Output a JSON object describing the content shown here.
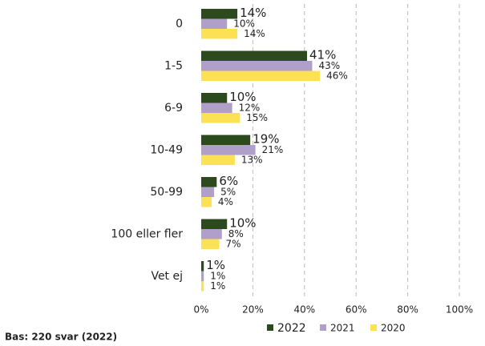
{
  "chart_data": {
    "type": "hbar",
    "categories": [
      "0",
      "1-5",
      "6-9",
      "10-49",
      "50-99",
      "100 eller fler",
      "Vet ej"
    ],
    "series": [
      {
        "name": "2022",
        "color": "#2d4a1e",
        "values": [
          14,
          41,
          10,
          19,
          6,
          10,
          1
        ],
        "value_labels": [
          "14%",
          "41%",
          "10%",
          "19%",
          "6%",
          "10%",
          "1%"
        ]
      },
      {
        "name": "2021",
        "color": "#b09fc9",
        "values": [
          10,
          43,
          12,
          21,
          5,
          8,
          1
        ],
        "value_labels": [
          "10%",
          "43%",
          "12%",
          "21%",
          "5%",
          "8%",
          "1%"
        ]
      },
      {
        "name": "2020",
        "color": "#fce154",
        "values": [
          14,
          46,
          15,
          13,
          4,
          7,
          1
        ],
        "value_labels": [
          "14%",
          "46%",
          "15%",
          "13%",
          "4%",
          "7%",
          "1%"
        ]
      }
    ],
    "xlim": [
      0,
      100
    ],
    "xticks": [
      {
        "value": 0,
        "label": "0%"
      },
      {
        "value": 20,
        "label": "20%"
      },
      {
        "value": 40,
        "label": "40%"
      },
      {
        "value": 60,
        "label": "60%"
      },
      {
        "value": 80,
        "label": "80%"
      },
      {
        "value": 100,
        "label": "100%"
      }
    ],
    "grid": true,
    "legend": "bottom",
    "note": "Bas: 220 svar (2022)"
  }
}
